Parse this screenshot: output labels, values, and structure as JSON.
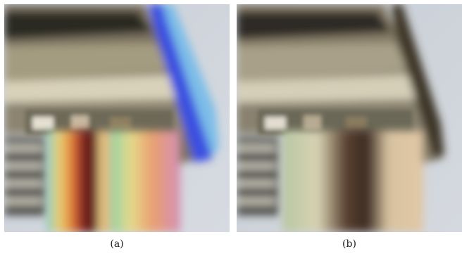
{
  "panels": [
    {
      "id": "a",
      "label": "(a)"
    },
    {
      "id": "b",
      "label": "(b)"
    }
  ]
}
